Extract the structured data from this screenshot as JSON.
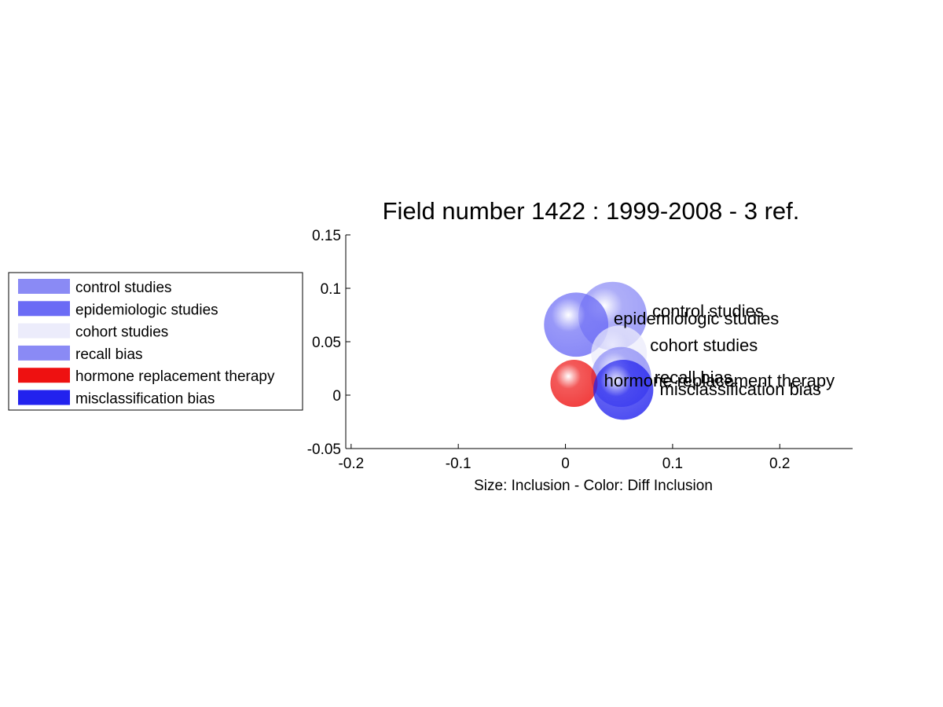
{
  "chart_data": {
    "type": "scatter",
    "title": "Field number 1422 : 1999-2008  - 3 ref.",
    "xlabel": "Size: Inclusion - Color: Diff Inclusion",
    "ylabel": "",
    "xlim": [
      -0.205,
      0.268
    ],
    "ylim": [
      -0.05,
      0.15
    ],
    "xticks": [
      -0.2,
      -0.1,
      0,
      0.1,
      0.2
    ],
    "yticks": [
      -0.05,
      0,
      0.05,
      0.1,
      0.15
    ],
    "xtick_labels": [
      "-0.2",
      "-0.1",
      "0",
      "0.1",
      "0.2"
    ],
    "ytick_labels": [
      "-0.05",
      "0",
      "0.05",
      "0.1",
      "0.15"
    ],
    "grid": false,
    "legend_position": "left",
    "series": [
      {
        "name": "control studies",
        "x": 0.044,
        "y": 0.074,
        "size": 0.032,
        "color": "#8a8af5"
      },
      {
        "name": "epidemiologic studies",
        "x": 0.01,
        "y": 0.066,
        "size": 0.03,
        "color": "#6b6bf5"
      },
      {
        "name": "cohort studies",
        "x": 0.05,
        "y": 0.039,
        "size": 0.026,
        "color": "#ececfb"
      },
      {
        "name": "recall bias",
        "x": 0.052,
        "y": 0.017,
        "size": 0.028,
        "color": "#8a8af5"
      },
      {
        "name": "hormone replacement therapy",
        "x": 0.008,
        "y": 0.011,
        "size": 0.022,
        "color": "#ee1111"
      },
      {
        "name": "misclassification bias",
        "x": 0.054,
        "y": 0.005,
        "size": 0.028,
        "color": "#2222ee"
      }
    ],
    "labels": [
      {
        "text": "control studies",
        "x": 0.081,
        "y": 0.073
      },
      {
        "text": "epidemiologic studies",
        "x": 0.045,
        "y": 0.066
      },
      {
        "text": "cohort studies",
        "x": 0.079,
        "y": 0.041
      },
      {
        "text": "recall bias",
        "x": 0.083,
        "y": 0.011
      },
      {
        "text": "hormone replacement therapy",
        "x": 0.036,
        "y": 0.008
      },
      {
        "text": "misclassification bias",
        "x": 0.088,
        "y": -0.0
      }
    ]
  }
}
